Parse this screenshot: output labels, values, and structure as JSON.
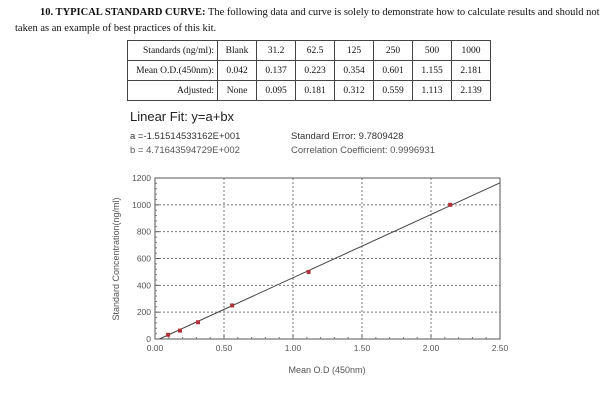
{
  "heading": {
    "number_title": "10. TYPICAL STANDARD CURVE:",
    "text_line1": " The following data and curve is solely to demonstrate how to calculate results and should not be",
    "text_line2": "taken as an example of best practices of this kit."
  },
  "table": {
    "rows": [
      {
        "label": "Standards (ng/ml):",
        "cells": [
          "Blank",
          "31.2",
          "62.5",
          "125",
          "250",
          "500",
          "1000"
        ]
      },
      {
        "label": "Mean O.D.(450nm):",
        "cells": [
          "0.042",
          "0.137",
          "0.223",
          "0.354",
          "0.601",
          "1.155",
          "2.181"
        ]
      },
      {
        "label": "Adjusted:",
        "cells": [
          "None",
          "0.095",
          "0.181",
          "0.312",
          "0.559",
          "1.113",
          "2.139"
        ]
      }
    ]
  },
  "fit": {
    "title": "Linear Fit: y=a+bx",
    "a": "a =-1.51514533162E+001",
    "b": "b = 4.71643594729E+002",
    "standard_error": "Standard Error: 9.7809428",
    "correlation": "Correlation Coefficient: 0.9996931"
  },
  "chart_data": {
    "type": "scatter",
    "title": "Linear Fit: y=a+bx",
    "xlabel": "Mean O.D (450nm)",
    "ylabel": "Standard Concentration(ng/ml)",
    "xlim": [
      0,
      2.5
    ],
    "ylim": [
      0,
      1200
    ],
    "x_ticks": [
      "0.00",
      "0.50",
      "1.00",
      "1.50",
      "2.00",
      "2.50"
    ],
    "y_ticks": [
      "0",
      "200",
      "400",
      "600",
      "800",
      "1000",
      "1200"
    ],
    "grid": true,
    "series": [
      {
        "name": "Standards",
        "x": [
          0.095,
          0.181,
          0.312,
          0.559,
          1.113,
          2.139
        ],
        "y": [
          31.2,
          62.5,
          125,
          250,
          500,
          1000
        ],
        "color": "#b0303a"
      },
      {
        "name": "Linear Fit",
        "type": "line",
        "intercept": -15.1514533162,
        "slope": 471.643594729,
        "x_range": [
          0.032,
          2.5
        ],
        "color": "#444444"
      }
    ]
  }
}
